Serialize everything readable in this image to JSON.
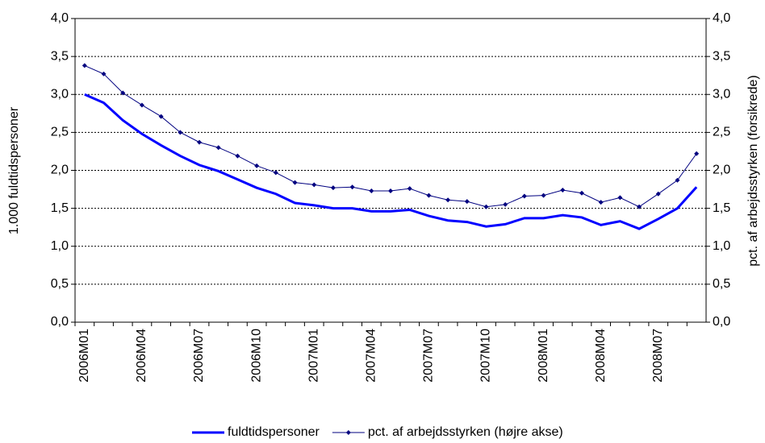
{
  "chart_data": {
    "type": "line",
    "categories": [
      "2006M01",
      null,
      null,
      "2006M04",
      null,
      null,
      "2006M07",
      null,
      null,
      "2006M10",
      null,
      null,
      "2007M01",
      null,
      null,
      "2007M04",
      null,
      null,
      "2007M07",
      null,
      null,
      "2007M10",
      null,
      null,
      "2008M01",
      null,
      null,
      "2008M04",
      null,
      null,
      "2008M07",
      null,
      null
    ],
    "series": [
      {
        "name": "fuldtidspersoner",
        "color": "#0000ff",
        "values": [
          3.0,
          2.89,
          2.66,
          2.48,
          2.33,
          2.19,
          2.07,
          1.99,
          1.88,
          1.77,
          1.69,
          1.57,
          1.54,
          1.5,
          1.5,
          1.46,
          1.46,
          1.48,
          1.4,
          1.34,
          1.32,
          1.26,
          1.29,
          1.37,
          1.37,
          1.41,
          1.38,
          1.28,
          1.33,
          1.23,
          1.36,
          1.5,
          1.78
        ]
      },
      {
        "name": "pct. af arbejdsstyrken (højre akse)",
        "color": "#000080",
        "axis": "y2",
        "values": [
          3.38,
          3.27,
          3.02,
          2.86,
          2.71,
          2.5,
          2.37,
          2.3,
          2.19,
          2.06,
          1.97,
          1.84,
          1.81,
          1.77,
          1.78,
          1.73,
          1.73,
          1.76,
          1.67,
          1.61,
          1.59,
          1.52,
          1.55,
          1.66,
          1.67,
          1.74,
          1.7,
          1.58,
          1.64,
          1.52,
          1.69,
          1.87,
          2.22
        ]
      }
    ],
    "y_label": "1.000 fuldtidspersoner",
    "y2_label": "pct. af arbejdsstyrken (forsikrede)",
    "ylim": [
      0,
      4
    ],
    "yticks": [
      {
        "value": 0,
        "label": "0,0"
      },
      {
        "value": 0.5,
        "label": "0,5"
      },
      {
        "value": 1,
        "label": "1,0"
      },
      {
        "value": 1.5,
        "label": "1,5"
      },
      {
        "value": 2,
        "label": "2,0"
      },
      {
        "value": 2.5,
        "label": "2,5"
      },
      {
        "value": 3,
        "label": "3,0"
      },
      {
        "value": 3.5,
        "label": "3,5"
      },
      {
        "value": 4,
        "label": "4,0"
      }
    ],
    "y2lim": [
      0,
      4
    ],
    "y2ticks": [
      {
        "value": 0,
        "label": "0,0"
      },
      {
        "value": 0.5,
        "label": "0,5"
      },
      {
        "value": 1,
        "label": "1,0"
      },
      {
        "value": 1.5,
        "label": "1,5"
      },
      {
        "value": 2,
        "label": "2,0"
      },
      {
        "value": 2.5,
        "label": "2,5"
      },
      {
        "value": 3,
        "label": "3,0"
      },
      {
        "value": 3.5,
        "label": "3,5"
      },
      {
        "value": 4,
        "label": "4,0"
      }
    ],
    "grid": true,
    "legend": "bottom"
  }
}
